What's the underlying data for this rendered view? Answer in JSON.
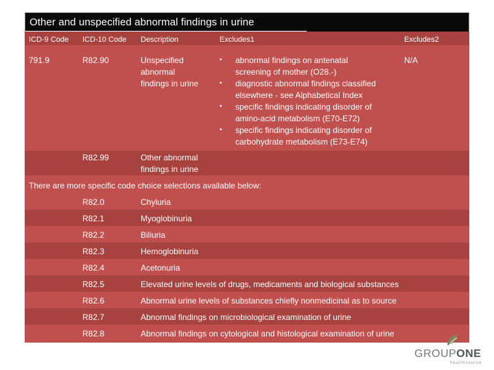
{
  "title": "Other and unspecified abnormal findings in urine",
  "headers": {
    "icd9": "ICD-9 Code",
    "icd10": "ICD-10 Code",
    "description": "Description",
    "excludes1": "Excludes1",
    "excludes2": "Excludes2"
  },
  "row1": {
    "icd9": "791.9",
    "icd10": "R82.90",
    "desc_lines": [
      "Unspecified",
      "abnormal",
      "findings in urine"
    ],
    "excludes2": "N/A",
    "excludes1": [
      [
        "abnormal findings on antenatal",
        "screening of mother (O28.-)"
      ],
      [
        "diagnostic abnormal findings classified",
        "elsewhere - see Alphabetical Index"
      ],
      [
        "specific findings indicating disorder of",
        "amino-acid metabolism (E70-E72)"
      ],
      [
        "specific findings indicating disorder of",
        "carbohydrate metabolism (E73-E74)"
      ]
    ]
  },
  "row2": {
    "icd10": "R82.99",
    "desc_lines": [
      "Other abnormal",
      "findings in urine"
    ]
  },
  "more_note": "There are more specific code choice selections available below:",
  "codes": [
    {
      "code": "R82.0",
      "desc": "Chyluria"
    },
    {
      "code": "R82.1",
      "desc": "Myoglobinuria"
    },
    {
      "code": "R82.2",
      "desc": "Biliuria"
    },
    {
      "code": "R82.3",
      "desc": "Hemoglobinuria"
    },
    {
      "code": "R82.4",
      "desc": "Acetonuria"
    },
    {
      "code": "R82.5",
      "desc": "Elevated urine levels of drugs, medicaments and biological substances"
    },
    {
      "code": "R82.6",
      "desc": "Abnormal urine levels of substances chiefly nonmedicinal as to source"
    },
    {
      "code": "R82.7",
      "desc": "Abnormal findings on microbiological examination of urine"
    },
    {
      "code": "R82.8",
      "desc": "Abnormal findings on cytological and histological examination of urine"
    }
  ],
  "logo": {
    "word_part1": "GROUP",
    "word_part2": "ONE",
    "sub": "healthsource"
  },
  "colors": {
    "row_light": "#c0504d",
    "row_dark": "#a8423f",
    "title_bg": "#0a0a0a"
  }
}
